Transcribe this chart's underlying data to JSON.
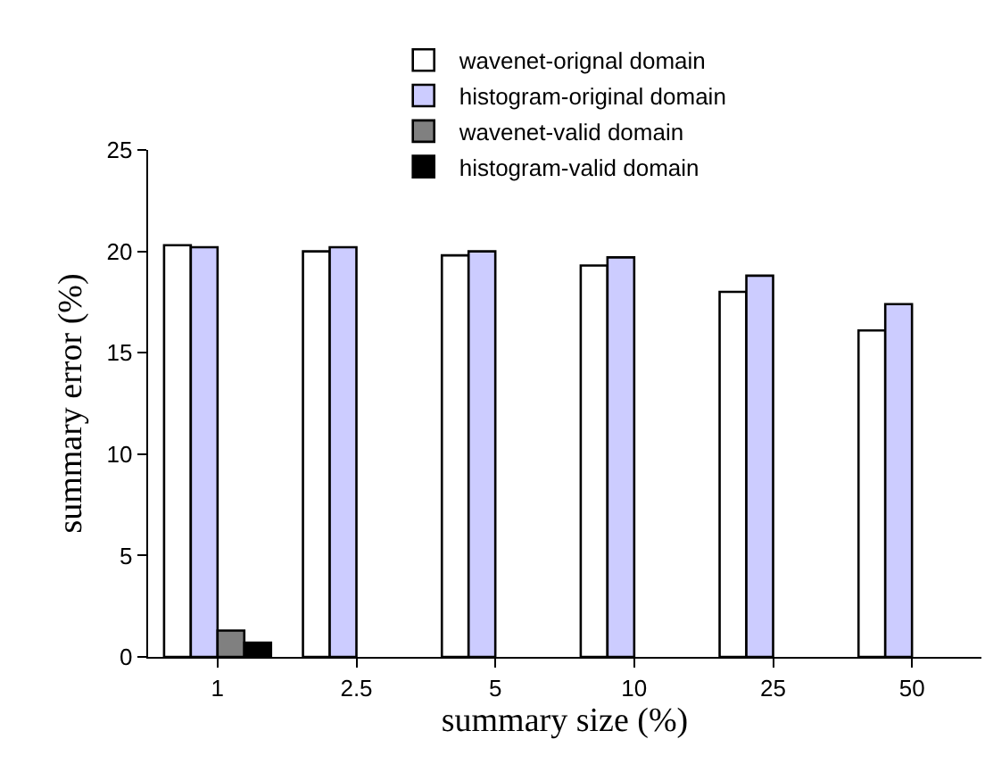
{
  "chart_data": {
    "type": "bar",
    "xlabel": "summary size (%)",
    "ylabel": "summary error (%)",
    "categories": [
      "1",
      "2.5",
      "5",
      "10",
      "25",
      "50"
    ],
    "series": [
      {
        "name": "wavenet-orignal domain",
        "color": "#ffffff",
        "values": [
          20.3,
          20.0,
          19.8,
          19.3,
          18.0,
          16.1
        ]
      },
      {
        "name": "histogram-original domain",
        "color": "#ccccff",
        "values": [
          20.2,
          20.2,
          20.0,
          19.7,
          18.8,
          17.4
        ]
      },
      {
        "name": "wavenet-valid domain",
        "color": "#808080",
        "values": [
          1.3,
          null,
          null,
          null,
          null,
          null
        ]
      },
      {
        "name": "histogram-valid domain",
        "color": "#000000",
        "values": [
          0.7,
          null,
          null,
          null,
          null,
          null
        ]
      }
    ],
    "ylim": [
      0,
      25
    ],
    "yticks": [
      0,
      5,
      10,
      15,
      20,
      25
    ],
    "grid": false,
    "legend": "top"
  }
}
